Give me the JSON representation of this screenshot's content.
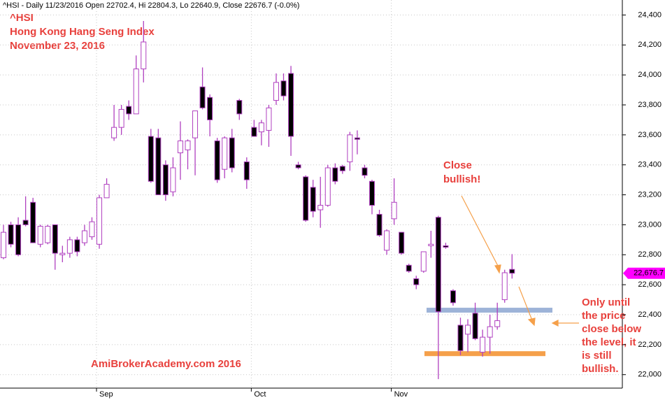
{
  "chart_data": {
    "type": "candlestick",
    "header": "^HSI - Daily 11/23/2016 Open 22702.4, Hi 22804.3, Lo 22640.9, Close 22676.7 (-0.0%)",
    "title": "^HSI",
    "subtitle": "Hong Kong Hang Seng Index",
    "date": "November 23, 2016",
    "watermark": "AmiBrokerAcademy.com  2016",
    "annotations": [
      [
        "Close",
        "bullish!"
      ],
      [
        "Only until",
        "the price",
        "close below",
        "the level, it",
        "is still",
        "bullish."
      ]
    ],
    "categories": [
      null,
      null,
      null,
      null,
      null,
      null,
      null,
      null,
      null,
      null,
      null,
      null,
      null,
      "Sep",
      null,
      null,
      null,
      null,
      null,
      null,
      null,
      null,
      null,
      null,
      null,
      null,
      null,
      null,
      null,
      null,
      null,
      null,
      null,
      null,
      "Oct",
      null,
      null,
      null,
      null,
      null,
      null,
      null,
      null,
      null,
      null,
      null,
      null,
      null,
      null,
      null,
      null,
      null,
      null,
      "Nov",
      null,
      null,
      null,
      null,
      null,
      null,
      null,
      null,
      null,
      null,
      null,
      null,
      null,
      null,
      null,
      null
    ],
    "open": [
      22780,
      23000,
      23000,
      23030,
      23150,
      22870,
      22880,
      23000,
      22800,
      22810,
      22900,
      22880,
      22920,
      22870,
      23180,
      23580,
      23650,
      23790,
      23740,
      24040,
      23590,
      23580,
      23400,
      23220,
      23480,
      23500,
      23580,
      23920,
      23850,
      23560,
      23370,
      23580,
      23830,
      23420,
      23650,
      23620,
      23630,
      23830,
      23960,
      24010,
      23400,
      23320,
      23250,
      23100,
      23130,
      23380,
      23390,
      23420,
      23580,
      23380,
      23290,
      23070,
      22830,
      23040,
      22950,
      22730,
      22640,
      22690,
      22860,
      23050,
      22860,
      22560,
      22330,
      22270,
      22410,
      22150,
      22250,
      22320,
      22500,
      22702.4
    ],
    "high": [
      23000,
      23020,
      23050,
      23190,
      23180,
      23000,
      23000,
      23000,
      22860,
      22920,
      22920,
      23000,
      23050,
      23200,
      23310,
      23800,
      23800,
      23830,
      24130,
      24360,
      23640,
      23640,
      23430,
      23450,
      23690,
      23570,
      23760,
      24050,
      23870,
      23580,
      23590,
      23640,
      23840,
      23450,
      23700,
      23700,
      23800,
      24010,
      24010,
      24060,
      23420,
      23330,
      23300,
      23320,
      23400,
      23410,
      23400,
      23620,
      23630,
      23400,
      23300,
      23100,
      22970,
      23310,
      22950,
      22740,
      22660,
      22820,
      22960,
      23060,
      22880,
      22570,
      22380,
      22370,
      22480,
      22300,
      22400,
      22480,
      22700,
      22804.3
    ],
    "low": [
      22770,
      22850,
      22790,
      22990,
      22880,
      22850,
      22870,
      22700,
      22750,
      22780,
      22790,
      22860,
      22900,
      22840,
      23180,
      23560,
      23600,
      23700,
      23740,
      23950,
      23280,
      23200,
      23160,
      23190,
      23300,
      23370,
      23330,
      23770,
      23590,
      23280,
      23310,
      23350,
      23700,
      23240,
      23590,
      23530,
      23520,
      23800,
      23830,
      23460,
      23370,
      23020,
      23050,
      22980,
      23120,
      23270,
      23340,
      23360,
      23470,
      23310,
      23070,
      22920,
      22800,
      23000,
      22800,
      22680,
      22570,
      22680,
      22780,
      21970,
      22840,
      22460,
      22130,
      22150,
      22230,
      22120,
      22140,
      22300,
      22480,
      22640.9
    ],
    "close": [
      22950,
      22870,
      22800,
      23000,
      22880,
      22990,
      22990,
      22810,
      22810,
      22900,
      22820,
      22960,
      23020,
      23180,
      23270,
      23650,
      23770,
      23740,
      24040,
      24220,
      23290,
      23200,
      23200,
      23380,
      23560,
      23560,
      23760,
      23780,
      23700,
      23300,
      23580,
      23380,
      23740,
      23300,
      23590,
      23680,
      23780,
      23950,
      23860,
      23590,
      23380,
      23030,
      23090,
      23130,
      23380,
      23290,
      23360,
      23600,
      23570,
      23330,
      23130,
      22930,
      22960,
      23150,
      22810,
      22690,
      22600,
      22820,
      22870,
      22420,
      22850,
      22480,
      22160,
      22330,
      22240,
      22250,
      22320,
      22360,
      22680,
      22676.7
    ],
    "last_price": {
      "value": 22676.7,
      "label": "22,676.7"
    },
    "levels": [
      {
        "value": 22430,
        "color": "#9db3d8"
      },
      {
        "value": 22140,
        "color": "#f5a04a"
      }
    ],
    "ylim": [
      21910,
      24500
    ],
    "yticks": [
      {
        "value": 22000,
        "label": "22,000"
      },
      {
        "value": 22200,
        "label": "22,200"
      },
      {
        "value": 22400,
        "label": "22,400"
      },
      {
        "value": 22600,
        "label": "22,600"
      },
      {
        "value": 22800,
        "label": "22,800"
      },
      {
        "value": 23000,
        "label": "23,000"
      },
      {
        "value": 23200,
        "label": "23,200"
      },
      {
        "value": 23400,
        "label": "23,400"
      },
      {
        "value": 23600,
        "label": "23,600"
      },
      {
        "value": 23800,
        "label": "23,800"
      },
      {
        "value": 24000,
        "label": "24,000"
      },
      {
        "value": 24200,
        "label": "24,200"
      },
      {
        "value": 24400,
        "label": "24,400"
      }
    ],
    "grid": true,
    "up_color": "#ffffff",
    "down_color": "#000000",
    "wick_color": "#b040c0"
  }
}
